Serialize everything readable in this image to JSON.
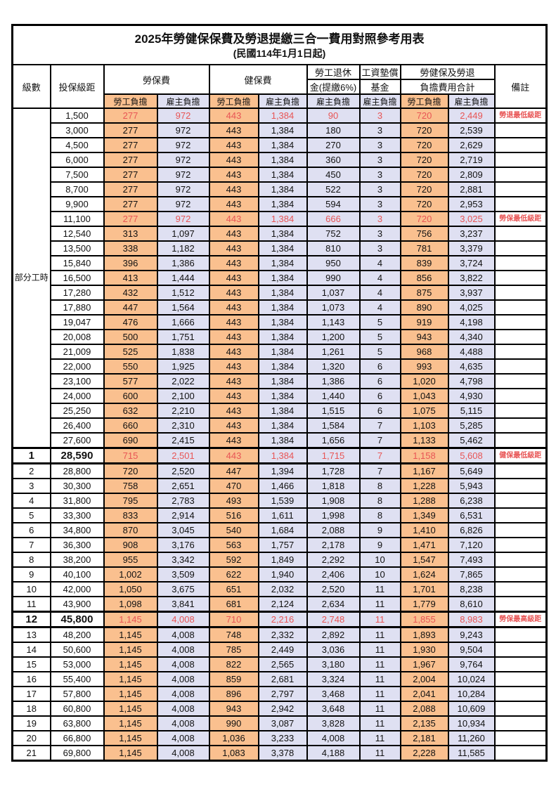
{
  "title": "2025年勞健保保費及勞退提繳三合一費用對照參考用表",
  "subtitle": "(民國114年1月1日起)",
  "colors": {
    "employee_column_bg": "#FAC08F",
    "employer_column_bg": "#DFE0F2",
    "milestone_text": "#E85555",
    "border": "#000000"
  },
  "header": {
    "level": "級數",
    "bracket": "投保級距",
    "labor_insurance": "勞保費",
    "health_insurance": "健保費",
    "pension_line1": "勞工退休",
    "pension_line2": "金(提繳6%)",
    "wage_fund_line1": "工資墊償",
    "wage_fund_line2": "基金",
    "total_line1": "勞健保及勞退",
    "total_line2": "負擔費用合計",
    "remark": "備註",
    "employee_share": "勞工負擔",
    "employer_share": "雇主負擔"
  },
  "part_time_label": "部分工時",
  "rows": [
    {
      "level": null,
      "bracket": "1,500",
      "li_e": "277",
      "li_r": "972",
      "hi_e": "443",
      "hi_r": "1,384",
      "pension": "90",
      "fund": "3",
      "tot_e": "720",
      "tot_r": "2,449",
      "remark": "勞退最低級距",
      "red": true,
      "milestone": false
    },
    {
      "level": null,
      "bracket": "3,000",
      "li_e": "277",
      "li_r": "972",
      "hi_e": "443",
      "hi_r": "1,384",
      "pension": "180",
      "fund": "3",
      "tot_e": "720",
      "tot_r": "2,539",
      "remark": "",
      "red": false,
      "milestone": false
    },
    {
      "level": null,
      "bracket": "4,500",
      "li_e": "277",
      "li_r": "972",
      "hi_e": "443",
      "hi_r": "1,384",
      "pension": "270",
      "fund": "3",
      "tot_e": "720",
      "tot_r": "2,629",
      "remark": "",
      "red": false,
      "milestone": false
    },
    {
      "level": null,
      "bracket": "6,000",
      "li_e": "277",
      "li_r": "972",
      "hi_e": "443",
      "hi_r": "1,384",
      "pension": "360",
      "fund": "3",
      "tot_e": "720",
      "tot_r": "2,719",
      "remark": "",
      "red": false,
      "milestone": false
    },
    {
      "level": null,
      "bracket": "7,500",
      "li_e": "277",
      "li_r": "972",
      "hi_e": "443",
      "hi_r": "1,384",
      "pension": "450",
      "fund": "3",
      "tot_e": "720",
      "tot_r": "2,809",
      "remark": "",
      "red": false,
      "milestone": false
    },
    {
      "level": null,
      "bracket": "8,700",
      "li_e": "277",
      "li_r": "972",
      "hi_e": "443",
      "hi_r": "1,384",
      "pension": "522",
      "fund": "3",
      "tot_e": "720",
      "tot_r": "2,881",
      "remark": "",
      "red": false,
      "milestone": false
    },
    {
      "level": null,
      "bracket": "9,900",
      "li_e": "277",
      "li_r": "972",
      "hi_e": "443",
      "hi_r": "1,384",
      "pension": "594",
      "fund": "3",
      "tot_e": "720",
      "tot_r": "2,953",
      "remark": "",
      "red": false,
      "milestone": false
    },
    {
      "level": null,
      "bracket": "11,100",
      "li_e": "277",
      "li_r": "972",
      "hi_e": "443",
      "hi_r": "1,384",
      "pension": "666",
      "fund": "3",
      "tot_e": "720",
      "tot_r": "3,025",
      "remark": "勞保最低級距",
      "red": true,
      "milestone": false
    },
    {
      "level": null,
      "bracket": "12,540",
      "li_e": "313",
      "li_r": "1,097",
      "hi_e": "443",
      "hi_r": "1,384",
      "pension": "752",
      "fund": "3",
      "tot_e": "756",
      "tot_r": "3,237",
      "remark": "",
      "red": false,
      "milestone": false
    },
    {
      "level": null,
      "bracket": "13,500",
      "li_e": "338",
      "li_r": "1,182",
      "hi_e": "443",
      "hi_r": "1,384",
      "pension": "810",
      "fund": "3",
      "tot_e": "781",
      "tot_r": "3,379",
      "remark": "",
      "red": false,
      "milestone": false
    },
    {
      "level": null,
      "bracket": "15,840",
      "li_e": "396",
      "li_r": "1,386",
      "hi_e": "443",
      "hi_r": "1,384",
      "pension": "950",
      "fund": "4",
      "tot_e": "839",
      "tot_r": "3,724",
      "remark": "",
      "red": false,
      "milestone": false
    },
    {
      "level": null,
      "bracket": "16,500",
      "li_e": "413",
      "li_r": "1,444",
      "hi_e": "443",
      "hi_r": "1,384",
      "pension": "990",
      "fund": "4",
      "tot_e": "856",
      "tot_r": "3,822",
      "remark": "",
      "red": false,
      "milestone": false
    },
    {
      "level": null,
      "bracket": "17,280",
      "li_e": "432",
      "li_r": "1,512",
      "hi_e": "443",
      "hi_r": "1,384",
      "pension": "1,037",
      "fund": "4",
      "tot_e": "875",
      "tot_r": "3,937",
      "remark": "",
      "red": false,
      "milestone": false
    },
    {
      "level": null,
      "bracket": "17,880",
      "li_e": "447",
      "li_r": "1,564",
      "hi_e": "443",
      "hi_r": "1,384",
      "pension": "1,073",
      "fund": "4",
      "tot_e": "890",
      "tot_r": "4,025",
      "remark": "",
      "red": false,
      "milestone": false
    },
    {
      "level": null,
      "bracket": "19,047",
      "li_e": "476",
      "li_r": "1,666",
      "hi_e": "443",
      "hi_r": "1,384",
      "pension": "1,143",
      "fund": "5",
      "tot_e": "919",
      "tot_r": "4,198",
      "remark": "",
      "red": false,
      "milestone": false
    },
    {
      "level": null,
      "bracket": "20,008",
      "li_e": "500",
      "li_r": "1,751",
      "hi_e": "443",
      "hi_r": "1,384",
      "pension": "1,200",
      "fund": "5",
      "tot_e": "943",
      "tot_r": "4,340",
      "remark": "",
      "red": false,
      "milestone": false
    },
    {
      "level": null,
      "bracket": "21,009",
      "li_e": "525",
      "li_r": "1,838",
      "hi_e": "443",
      "hi_r": "1,384",
      "pension": "1,261",
      "fund": "5",
      "tot_e": "968",
      "tot_r": "4,488",
      "remark": "",
      "red": false,
      "milestone": false
    },
    {
      "level": null,
      "bracket": "22,000",
      "li_e": "550",
      "li_r": "1,925",
      "hi_e": "443",
      "hi_r": "1,384",
      "pension": "1,320",
      "fund": "6",
      "tot_e": "993",
      "tot_r": "4,635",
      "remark": "",
      "red": false,
      "milestone": false
    },
    {
      "level": null,
      "bracket": "23,100",
      "li_e": "577",
      "li_r": "2,022",
      "hi_e": "443",
      "hi_r": "1,384",
      "pension": "1,386",
      "fund": "6",
      "tot_e": "1,020",
      "tot_r": "4,798",
      "remark": "",
      "red": false,
      "milestone": false
    },
    {
      "level": null,
      "bracket": "24,000",
      "li_e": "600",
      "li_r": "2,100",
      "hi_e": "443",
      "hi_r": "1,384",
      "pension": "1,440",
      "fund": "6",
      "tot_e": "1,043",
      "tot_r": "4,930",
      "remark": "",
      "red": false,
      "milestone": false
    },
    {
      "level": null,
      "bracket": "25,250",
      "li_e": "632",
      "li_r": "2,210",
      "hi_e": "443",
      "hi_r": "1,384",
      "pension": "1,515",
      "fund": "6",
      "tot_e": "1,075",
      "tot_r": "5,115",
      "remark": "",
      "red": false,
      "milestone": false
    },
    {
      "level": null,
      "bracket": "26,400",
      "li_e": "660",
      "li_r": "2,310",
      "hi_e": "443",
      "hi_r": "1,384",
      "pension": "1,584",
      "fund": "7",
      "tot_e": "1,103",
      "tot_r": "5,285",
      "remark": "",
      "red": false,
      "milestone": false
    },
    {
      "level": null,
      "bracket": "27,600",
      "li_e": "690",
      "li_r": "2,415",
      "hi_e": "443",
      "hi_r": "1,384",
      "pension": "1,656",
      "fund": "7",
      "tot_e": "1,133",
      "tot_r": "5,462",
      "remark": "",
      "red": false,
      "milestone": false
    },
    {
      "level": "1",
      "bracket": "28,590",
      "li_e": "715",
      "li_r": "2,501",
      "hi_e": "443",
      "hi_r": "1,384",
      "pension": "1,715",
      "fund": "7",
      "tot_e": "1,158",
      "tot_r": "5,608",
      "remark": "健保最低級距",
      "red": true,
      "milestone": true
    },
    {
      "level": "2",
      "bracket": "28,800",
      "li_e": "720",
      "li_r": "2,520",
      "hi_e": "447",
      "hi_r": "1,394",
      "pension": "1,728",
      "fund": "7",
      "tot_e": "1,167",
      "tot_r": "5,649",
      "remark": "",
      "red": false,
      "milestone": false
    },
    {
      "level": "3",
      "bracket": "30,300",
      "li_e": "758",
      "li_r": "2,651",
      "hi_e": "470",
      "hi_r": "1,466",
      "pension": "1,818",
      "fund": "8",
      "tot_e": "1,228",
      "tot_r": "5,943",
      "remark": "",
      "red": false,
      "milestone": false
    },
    {
      "level": "4",
      "bracket": "31,800",
      "li_e": "795",
      "li_r": "2,783",
      "hi_e": "493",
      "hi_r": "1,539",
      "pension": "1,908",
      "fund": "8",
      "tot_e": "1,288",
      "tot_r": "6,238",
      "remark": "",
      "red": false,
      "milestone": false
    },
    {
      "level": "5",
      "bracket": "33,300",
      "li_e": "833",
      "li_r": "2,914",
      "hi_e": "516",
      "hi_r": "1,611",
      "pension": "1,998",
      "fund": "8",
      "tot_e": "1,349",
      "tot_r": "6,531",
      "remark": "",
      "red": false,
      "milestone": false
    },
    {
      "level": "6",
      "bracket": "34,800",
      "li_e": "870",
      "li_r": "3,045",
      "hi_e": "540",
      "hi_r": "1,684",
      "pension": "2,088",
      "fund": "9",
      "tot_e": "1,410",
      "tot_r": "6,826",
      "remark": "",
      "red": false,
      "milestone": false
    },
    {
      "level": "7",
      "bracket": "36,300",
      "li_e": "908",
      "li_r": "3,176",
      "hi_e": "563",
      "hi_r": "1,757",
      "pension": "2,178",
      "fund": "9",
      "tot_e": "1,471",
      "tot_r": "7,120",
      "remark": "",
      "red": false,
      "milestone": false
    },
    {
      "level": "8",
      "bracket": "38,200",
      "li_e": "955",
      "li_r": "3,342",
      "hi_e": "592",
      "hi_r": "1,849",
      "pension": "2,292",
      "fund": "10",
      "tot_e": "1,547",
      "tot_r": "7,493",
      "remark": "",
      "red": false,
      "milestone": false
    },
    {
      "level": "9",
      "bracket": "40,100",
      "li_e": "1,002",
      "li_r": "3,509",
      "hi_e": "622",
      "hi_r": "1,940",
      "pension": "2,406",
      "fund": "10",
      "tot_e": "1,624",
      "tot_r": "7,865",
      "remark": "",
      "red": false,
      "milestone": false
    },
    {
      "level": "10",
      "bracket": "42,000",
      "li_e": "1,050",
      "li_r": "3,675",
      "hi_e": "651",
      "hi_r": "2,032",
      "pension": "2,520",
      "fund": "11",
      "tot_e": "1,701",
      "tot_r": "8,238",
      "remark": "",
      "red": false,
      "milestone": false
    },
    {
      "level": "11",
      "bracket": "43,900",
      "li_e": "1,098",
      "li_r": "3,841",
      "hi_e": "681",
      "hi_r": "2,124",
      "pension": "2,634",
      "fund": "11",
      "tot_e": "1,779",
      "tot_r": "8,610",
      "remark": "",
      "red": false,
      "milestone": false
    },
    {
      "level": "12",
      "bracket": "45,800",
      "li_e": "1,145",
      "li_r": "4,008",
      "hi_e": "710",
      "hi_r": "2,216",
      "pension": "2,748",
      "fund": "11",
      "tot_e": "1,855",
      "tot_r": "8,983",
      "remark": "勞保最高級距",
      "red": true,
      "milestone": true
    },
    {
      "level": "13",
      "bracket": "48,200",
      "li_e": "1,145",
      "li_r": "4,008",
      "hi_e": "748",
      "hi_r": "2,332",
      "pension": "2,892",
      "fund": "11",
      "tot_e": "1,893",
      "tot_r": "9,243",
      "remark": "",
      "red": false,
      "milestone": false
    },
    {
      "level": "14",
      "bracket": "50,600",
      "li_e": "1,145",
      "li_r": "4,008",
      "hi_e": "785",
      "hi_r": "2,449",
      "pension": "3,036",
      "fund": "11",
      "tot_e": "1,930",
      "tot_r": "9,504",
      "remark": "",
      "red": false,
      "milestone": false
    },
    {
      "level": "15",
      "bracket": "53,000",
      "li_e": "1,145",
      "li_r": "4,008",
      "hi_e": "822",
      "hi_r": "2,565",
      "pension": "3,180",
      "fund": "11",
      "tot_e": "1,967",
      "tot_r": "9,764",
      "remark": "",
      "red": false,
      "milestone": false
    },
    {
      "level": "16",
      "bracket": "55,400",
      "li_e": "1,145",
      "li_r": "4,008",
      "hi_e": "859",
      "hi_r": "2,681",
      "pension": "3,324",
      "fund": "11",
      "tot_e": "2,004",
      "tot_r": "10,024",
      "remark": "",
      "red": false,
      "milestone": false
    },
    {
      "level": "17",
      "bracket": "57,800",
      "li_e": "1,145",
      "li_r": "4,008",
      "hi_e": "896",
      "hi_r": "2,797",
      "pension": "3,468",
      "fund": "11",
      "tot_e": "2,041",
      "tot_r": "10,284",
      "remark": "",
      "red": false,
      "milestone": false
    },
    {
      "level": "18",
      "bracket": "60,800",
      "li_e": "1,145",
      "li_r": "4,008",
      "hi_e": "943",
      "hi_r": "2,942",
      "pension": "3,648",
      "fund": "11",
      "tot_e": "2,088",
      "tot_r": "10,609",
      "remark": "",
      "red": false,
      "milestone": false
    },
    {
      "level": "19",
      "bracket": "63,800",
      "li_e": "1,145",
      "li_r": "4,008",
      "hi_e": "990",
      "hi_r": "3,087",
      "pension": "3,828",
      "fund": "11",
      "tot_e": "2,135",
      "tot_r": "10,934",
      "remark": "",
      "red": false,
      "milestone": false
    },
    {
      "level": "20",
      "bracket": "66,800",
      "li_e": "1,145",
      "li_r": "4,008",
      "hi_e": "1,036",
      "hi_r": "3,233",
      "pension": "4,008",
      "fund": "11",
      "tot_e": "2,181",
      "tot_r": "11,260",
      "remark": "",
      "red": false,
      "milestone": false
    },
    {
      "level": "21",
      "bracket": "69,800",
      "li_e": "1,145",
      "li_r": "4,008",
      "hi_e": "1,083",
      "hi_r": "3,378",
      "pension": "4,188",
      "fund": "11",
      "tot_e": "2,228",
      "tot_r": "11,585",
      "remark": "",
      "red": false,
      "milestone": false
    }
  ]
}
